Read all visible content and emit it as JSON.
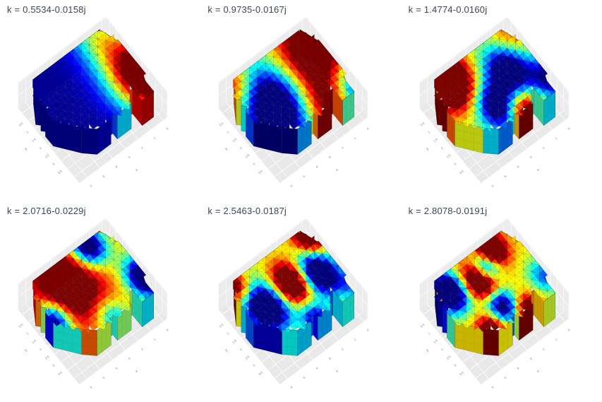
{
  "figure": {
    "background": "#ffffff",
    "description": "Grid of six 3D triangulated FEM surface plots of complex eigenmodes of an extruded hall-shaped domain, jet colormap"
  },
  "chart_data": {
    "type": "3d-surface-mesh-grid",
    "layout": {
      "rows": 2,
      "cols": 3
    },
    "colormap": "jet",
    "colors": {
      "title": "#3d4757",
      "pane_floor": "#e9e9e9",
      "pane_wall": "#ececec",
      "pane_grid": "#ffffff",
      "tick": "#777777"
    },
    "axes": {
      "x": {
        "label": "x",
        "ticks": [
          0,
          1,
          2,
          3,
          4,
          5,
          6
        ]
      },
      "y": {
        "label": "y",
        "ticks": [
          0.5,
          1,
          1.5,
          2,
          2.5,
          3,
          3.5
        ]
      }
    },
    "geometry": {
      "wall_height": 1.0,
      "plan_outline": [
        [
          0.5,
          0.0
        ],
        [
          0.0,
          1.1
        ],
        [
          0.0,
          2.7
        ],
        [
          0.35,
          3.4
        ],
        [
          0.35,
          4.0
        ],
        [
          1.25,
          4.0
        ],
        [
          1.25,
          3.25
        ],
        [
          1.9,
          3.25
        ],
        [
          1.9,
          3.8
        ],
        [
          3.0,
          3.8
        ],
        [
          3.0,
          3.45
        ],
        [
          3.5,
          3.45
        ],
        [
          3.5,
          3.8
        ],
        [
          4.6,
          3.8
        ],
        [
          5.3,
          3.3
        ],
        [
          6.4,
          2.2
        ],
        [
          6.4,
          1.6
        ],
        [
          6.15,
          1.45
        ],
        [
          6.4,
          1.25
        ],
        [
          6.15,
          1.05
        ],
        [
          6.4,
          0.85
        ],
        [
          5.7,
          0.0
        ]
      ]
    },
    "subplots": [
      {
        "title": "k = 0.5534-0.0158j",
        "k_re": 0.5534,
        "k_im": -0.0158,
        "field": {
          "base": -1.0,
          "blobs": [
            [
              0.2,
              3.0,
              2.0,
              2.7
            ],
            [
              0.9,
              0.1,
              1.6,
              0.9
            ]
          ]
        }
      },
      {
        "title": "k = 0.9735-0.0167j",
        "k_re": 0.9735,
        "k_im": -0.0167,
        "field": {
          "base": 0.0,
          "blobs": [
            [
              0.8,
              1.3,
              2.2,
              1.6
            ],
            [
              2.2,
              3.9,
              1.5,
              1.1
            ],
            [
              4.9,
              2.1,
              2.0,
              -1.9
            ],
            [
              0.0,
              4.0,
              1.5,
              -1.2
            ],
            [
              6.2,
              0.2,
              1.6,
              1.3
            ]
          ]
        }
      },
      {
        "title": "k = 1.4774-0.0160j",
        "k_re": 1.4774,
        "k_im": -0.016,
        "field": {
          "base": 0.15,
          "blobs": [
            [
              5.2,
              0.5,
              1.5,
              2.1
            ],
            [
              2.6,
              3.95,
              1.1,
              1.6
            ],
            [
              1.8,
              1.8,
              1.3,
              -1.6
            ],
            [
              3.7,
              2.9,
              1.3,
              -1.7
            ],
            [
              0.1,
              3.3,
              1.1,
              -1.2
            ],
            [
              0.3,
              0.3,
              1.2,
              0.5
            ]
          ]
        }
      },
      {
        "title": "k = 2.0716-0.0229j",
        "k_re": 2.0716,
        "k_im": -0.0229,
        "field": {
          "base": 0.35,
          "blobs": [
            [
              4.2,
              1.2,
              2.1,
              1.3
            ],
            [
              1.7,
              0.25,
              1.05,
              -1.9
            ],
            [
              0.15,
              3.1,
              1.1,
              -1.9
            ],
            [
              6.3,
              2.2,
              0.95,
              -1.7
            ],
            [
              3.3,
              3.8,
              1.0,
              -0.9
            ]
          ]
        }
      },
      {
        "title": "k = 2.5463-0.0187j",
        "k_re": 2.5463,
        "k_im": -0.0187,
        "field": {
          "base": 0.2,
          "blobs": [
            [
              1.3,
              2.2,
              1.15,
              -2.0
            ],
            [
              3.0,
              1.8,
              1.1,
              1.9
            ],
            [
              5.2,
              2.0,
              1.25,
              -2.1
            ],
            [
              0.3,
              0.4,
              0.95,
              1.6
            ],
            [
              5.9,
              0.3,
              0.85,
              1.2
            ],
            [
              3.2,
              3.9,
              0.9,
              -1.2
            ],
            [
              0.2,
              3.6,
              0.8,
              -0.6
            ]
          ]
        }
      },
      {
        "title": "k = 2.8078-0.0191j",
        "k_re": 2.8078,
        "k_im": -0.0191,
        "field": {
          "base": 0.3,
          "blobs": [
            [
              1.7,
              0.4,
              0.85,
              1.8
            ],
            [
              2.7,
              1.0,
              0.75,
              -1.6
            ],
            [
              3.5,
              1.4,
              1.0,
              1.9
            ],
            [
              5.5,
              0.9,
              1.05,
              -2.2
            ],
            [
              3.4,
              2.9,
              0.95,
              -1.7
            ],
            [
              2.3,
              3.95,
              0.8,
              1.5
            ],
            [
              4.9,
              3.6,
              0.8,
              1.3
            ],
            [
              0.2,
              3.0,
              0.9,
              -0.9
            ]
          ]
        }
      }
    ]
  }
}
